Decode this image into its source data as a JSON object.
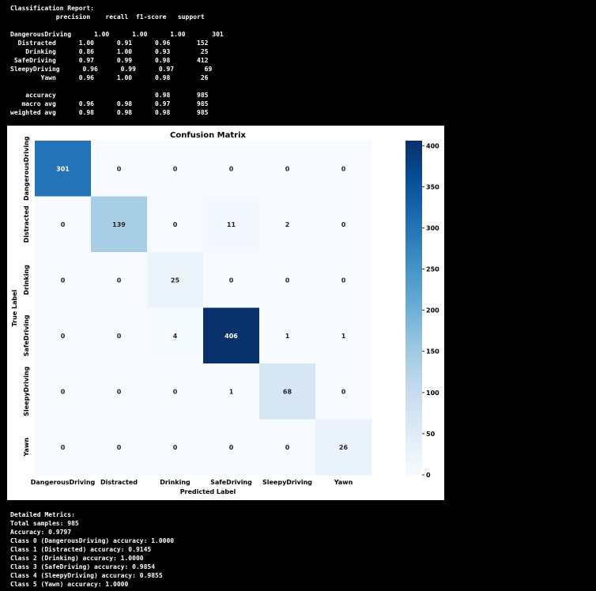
{
  "report": {
    "title": "Classification Report:",
    "header": "precision    recall  f1-score   support",
    "rows": [
      {
        "label": "DangerousDriving",
        "precision": "1.00",
        "recall": "1.00",
        "f1": "1.00",
        "support": "301"
      },
      {
        "label": "Distracted",
        "precision": "1.00",
        "recall": "0.91",
        "f1": "0.96",
        "support": "152"
      },
      {
        "label": "Drinking",
        "precision": "0.86",
        "recall": "1.00",
        "f1": "0.93",
        "support": "25"
      },
      {
        "label": "SafeDriving",
        "precision": "0.97",
        "recall": "0.99",
        "f1": "0.98",
        "support": "412"
      },
      {
        "label": "SleepyDriving",
        "precision": "0.96",
        "recall": "0.99",
        "f1": "0.97",
        "support": "69"
      },
      {
        "label": "Yawn",
        "precision": "0.96",
        "recall": "1.00",
        "f1": "0.98",
        "support": "26"
      }
    ],
    "summary": [
      {
        "label": "accuracy",
        "precision": "",
        "recall": "",
        "f1": "0.98",
        "support": "985"
      },
      {
        "label": "macro avg",
        "precision": "0.96",
        "recall": "0.98",
        "f1": "0.97",
        "support": "985"
      },
      {
        "label": "weighted avg",
        "precision": "0.98",
        "recall": "0.98",
        "f1": "0.98",
        "support": "985"
      }
    ]
  },
  "chart_data": {
    "type": "heatmap",
    "title": "Confusion Matrix",
    "xlabel": "Predicted Label",
    "ylabel": "True Label",
    "x_categories": [
      "DangerousDriving",
      "Distracted",
      "Drinking",
      "SafeDriving",
      "SleepyDriving",
      "Yawn"
    ],
    "y_categories": [
      "DangerousDriving",
      "Distracted",
      "Drinking",
      "SafeDriving",
      "SleepyDriving",
      "Yawn"
    ],
    "values": [
      [
        301,
        0,
        0,
        0,
        0,
        0
      ],
      [
        0,
        139,
        0,
        11,
        2,
        0
      ],
      [
        0,
        0,
        25,
        0,
        0,
        0
      ],
      [
        0,
        0,
        4,
        406,
        1,
        1
      ],
      [
        0,
        0,
        0,
        1,
        68,
        0
      ],
      [
        0,
        0,
        0,
        0,
        0,
        26
      ]
    ],
    "colormap": "Blues",
    "vmin": 0,
    "vmax": 406,
    "colorbar_ticks": [
      0,
      50,
      100,
      150,
      200,
      250,
      300,
      350,
      400
    ]
  },
  "metrics": {
    "lines": [
      "Detailed Metrics:",
      "Total samples: 985",
      "Accuracy: 0.9797",
      "Class 0 (DangerousDriving) accuracy: 1.0000",
      "Class 1 (Distracted) accuracy: 0.9145",
      "Class 2 (Drinking) accuracy: 1.0000",
      "Class 3 (SafeDriving) accuracy: 0.9854",
      "Class 4 (SleepyDriving) accuracy: 0.9855",
      "Class 5 (Yawn) accuracy: 1.0000"
    ]
  }
}
